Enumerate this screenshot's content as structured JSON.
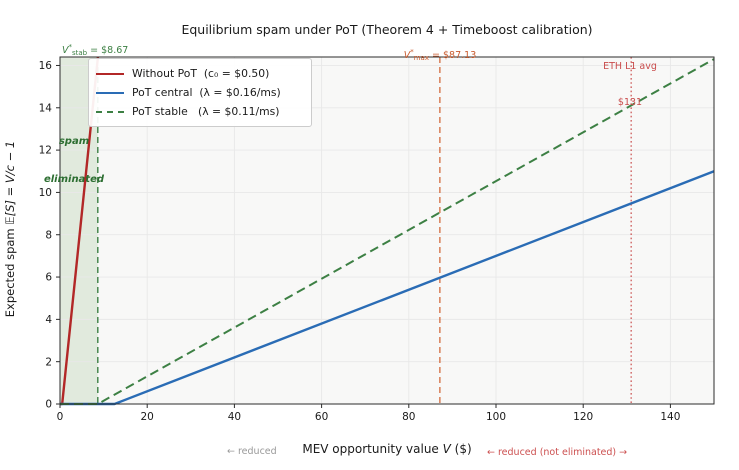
{
  "figure": {
    "title": "Equilibrium spam under PoT  (Theorem 4 + Timeboost calibration)",
    "ylabel": {
      "text": "Expected spam  ",
      "math": "𝔼[S] = V/c − 1"
    },
    "xlabel": {
      "prefix": "MEV opportunity value  ",
      "var": "V",
      "suffix": "  ($)"
    }
  },
  "legend": {
    "items": [
      {
        "label": "Without PoT  (c₀ = $0.50)",
        "color": "#b22727",
        "style": "solid"
      },
      {
        "label": "PoT central  (λ = $0.16/ms)",
        "color": "#2a6cb5",
        "style": "solid"
      },
      {
        "label": "PoT stable   (λ = $0.11/ms)",
        "color": "#3d8044",
        "style": "dashed"
      }
    ]
  },
  "annotations": {
    "vstab": {
      "var": "V",
      "sup": "*",
      "sub": "stab",
      "text": " = $8.67",
      "color": "#3d8044"
    },
    "vmax": {
      "var": "V",
      "sup": "*",
      "sub": "max",
      "text": " = $87.13",
      "color": "#c95b2e"
    },
    "eth_line1": "ETH L1 avg",
    "eth_line2": "$131",
    "spam_line1": "spam",
    "spam_line2": "eliminated",
    "reduced_left": "← reduced",
    "reduced_right": "← reduced (not eliminated) →"
  },
  "chart_data": {
    "type": "line",
    "title": "Equilibrium spam under PoT  (Theorem 4 + Timeboost calibration)",
    "xlabel": "MEV opportunity value V ($)",
    "ylabel": "Expected spam E[S] = V/c − 1",
    "xlim": [
      0,
      150
    ],
    "ylim": [
      0,
      16.4
    ],
    "xticks": [
      0,
      20,
      40,
      60,
      80,
      100,
      120,
      140
    ],
    "yticks": [
      0,
      2,
      4,
      6,
      8,
      10,
      12,
      14,
      16
    ],
    "grid": true,
    "legend_position": "upper left",
    "series": [
      {
        "name": "Without PoT  (c0 = $0.50)",
        "formula": "E[S] = max(0, V/0.50 − 1)",
        "x_intercept": 0.5,
        "color": "#b22727",
        "dash": "solid",
        "width": 2.4
      },
      {
        "name": "PoT central  (λ = $0.16/ms)",
        "formula": "E[S] = max(0, V/12.5 − 1)",
        "x_intercept": 12.5,
        "color": "#2a6cb5",
        "dash": "solid",
        "width": 2.4
      },
      {
        "name": "PoT stable  (λ = $0.11/ms)",
        "formula": "E[S] = max(0, V/8.67 − 1)",
        "x_intercept": 8.67,
        "color": "#3d8044",
        "dash": "dashed",
        "width": 2.0
      }
    ],
    "vlines": [
      {
        "x": 8.67,
        "label": "V*stab = $8.67",
        "color": "#3d8044",
        "style": "dashed",
        "width": 1.4
      },
      {
        "x": 87.13,
        "label": "V*max = $87.13",
        "color": "#d0602f",
        "style": "dashed",
        "width": 1.2
      },
      {
        "x": 131,
        "label": "ETH L1 avg $131",
        "color": "#c94c4c",
        "style": "dotted",
        "width": 1.2
      }
    ],
    "shaded_region": {
      "x_from": 0,
      "x_to": 8.67,
      "color": "#e1eadd",
      "label": "spam eliminated"
    },
    "colors": {
      "plot_bg": "#f8f8f7",
      "grid": "#e8e8e8",
      "spine": "#2b2b2b",
      "tick_label": "#1a1a1a"
    }
  }
}
